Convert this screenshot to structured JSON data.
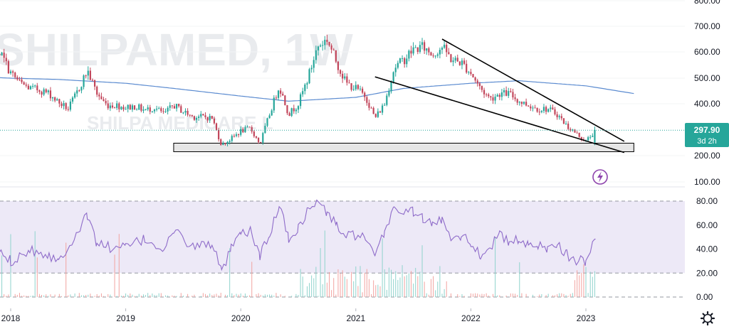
{
  "watermark": {
    "symbol": "SHILPAMED, 1W",
    "name": "SHILPA MEDICARE L"
  },
  "colors": {
    "up": "#26a69a",
    "down": "#ef5350",
    "down_body": "#c2455a",
    "ma": "#5b8bd0",
    "rsi": "#8e6bc9",
    "rsi_band": "#ede9f7",
    "price_line": "#26a69a",
    "trendline": "#000000",
    "support_fill": "#e6e6e6"
  },
  "price_label": {
    "value": "297.90",
    "countdown": "3d 2h"
  },
  "icons": {
    "alert": "lightning-icon",
    "settings": "gear-icon"
  },
  "chart_data": [
    {
      "type": "candlestick",
      "title": "",
      "y_axis": {
        "ticks": [
          "800.00",
          "700.00",
          "600.00",
          "500.00",
          "400.00",
          "200.00",
          "100.00"
        ],
        "ylim": [
          90,
          810
        ]
      },
      "x_axis": {
        "ticks": [
          "2018",
          "2019",
          "2020",
          "2021",
          "2022",
          "2023"
        ]
      },
      "last_price": 297.9,
      "support_zone": {
        "x_start": "2019-06",
        "x_end": "2023-06",
        "y_low": 215,
        "y_high": 248
      },
      "trendlines": [
        {
          "from": {
            "x": "2021-10",
            "y": 650
          },
          "to": {
            "x": "2023-05",
            "y": 255
          }
        },
        {
          "from": {
            "x": "2021-03",
            "y": 505
          },
          "to": {
            "x": "2023-05",
            "y": 212
          }
        }
      ],
      "series": [
        {
          "type": "candles",
          "close_path": [
            [
              "2017-10",
              670
            ],
            [
              "2017-11",
              645
            ],
            [
              "2017-12",
              590
            ],
            [
              "2018-01",
              520
            ],
            [
              "2018-02",
              480
            ],
            [
              "2018-03",
              460
            ],
            [
              "2018-04",
              455
            ],
            [
              "2018-05",
              440
            ],
            [
              "2018-06",
              405
            ],
            [
              "2018-07",
              380
            ],
            [
              "2018-08",
              450
            ],
            [
              "2018-09",
              530
            ],
            [
              "2018-10",
              440
            ],
            [
              "2018-11",
              395
            ],
            [
              "2018-12",
              395
            ],
            [
              "2019-01",
              385
            ],
            [
              "2019-02",
              390
            ],
            [
              "2019-03",
              375
            ],
            [
              "2019-04",
              385
            ],
            [
              "2019-05",
              360
            ],
            [
              "2019-06",
              395
            ],
            [
              "2019-07",
              370
            ],
            [
              "2019-08",
              350
            ],
            [
              "2019-09",
              350
            ],
            [
              "2019-10",
              345
            ],
            [
              "2019-11",
              240
            ],
            [
              "2019-12",
              265
            ],
            [
              "2020-01",
              295
            ],
            [
              "2020-02",
              305
            ],
            [
              "2020-03",
              245
            ],
            [
              "2020-04",
              360
            ],
            [
              "2020-05",
              470
            ],
            [
              "2020-06",
              360
            ],
            [
              "2020-07",
              400
            ],
            [
              "2020-08",
              500
            ],
            [
              "2020-09",
              620
            ],
            [
              "2020-10",
              650
            ],
            [
              "2020-11",
              560
            ],
            [
              "2020-12",
              480
            ],
            [
              "2021-01",
              460
            ],
            [
              "2021-02",
              430
            ],
            [
              "2021-03",
              345
            ],
            [
              "2021-04",
              400
            ],
            [
              "2021-05",
              540
            ],
            [
              "2021-06",
              570
            ],
            [
              "2021-07",
              610
            ],
            [
              "2021-08",
              620
            ],
            [
              "2021-09",
              590
            ],
            [
              "2021-10",
              620
            ],
            [
              "2021-11",
              570
            ],
            [
              "2021-12",
              560
            ],
            [
              "2022-01",
              520
            ],
            [
              "2022-02",
              460
            ],
            [
              "2022-03",
              420
            ],
            [
              "2022-04",
              440
            ],
            [
              "2022-05",
              440
            ],
            [
              "2022-06",
              410
            ],
            [
              "2022-07",
              395
            ],
            [
              "2022-08",
              380
            ],
            [
              "2022-09",
              380
            ],
            [
              "2022-10",
              360
            ],
            [
              "2022-11",
              315
            ],
            [
              "2022-12",
              285
            ],
            [
              "2023-01",
              255
            ],
            [
              "2023-02",
              297.9
            ]
          ]
        },
        {
          "type": "moving-average",
          "path": [
            [
              "2017-10",
              505
            ],
            [
              "2018-01",
              500
            ],
            [
              "2018-06",
              495
            ],
            [
              "2019-01",
              480
            ],
            [
              "2019-06",
              460
            ],
            [
              "2020-01",
              430
            ],
            [
              "2020-06",
              410
            ],
            [
              "2021-01",
              425
            ],
            [
              "2021-06",
              460
            ],
            [
              "2022-01",
              480
            ],
            [
              "2022-06",
              490
            ],
            [
              "2023-01",
              470
            ],
            [
              "2023-06",
              440
            ]
          ]
        }
      ]
    },
    {
      "type": "line",
      "title": "",
      "y_axis": {
        "ticks": [
          "80.00",
          "60.00",
          "40.00",
          "20.00",
          "0.00"
        ],
        "ylim": [
          -5,
          88
        ]
      },
      "band": [
        20,
        80
      ],
      "series": [
        {
          "type": "rsi",
          "path": [
            [
              "2017-10",
              52
            ],
            [
              "2017-12",
              38
            ],
            [
              "2018-01",
              30
            ],
            [
              "2018-03",
              40
            ],
            [
              "2018-05",
              35
            ],
            [
              "2018-06",
              30
            ],
            [
              "2018-08",
              55
            ],
            [
              "2018-09",
              68
            ],
            [
              "2018-10",
              45
            ],
            [
              "2018-12",
              40
            ],
            [
              "2019-01",
              42
            ],
            [
              "2019-03",
              48
            ],
            [
              "2019-05",
              40
            ],
            [
              "2019-06",
              55
            ],
            [
              "2019-08",
              42
            ],
            [
              "2019-10",
              45
            ],
            [
              "2019-11",
              20
            ],
            [
              "2019-12",
              40
            ],
            [
              "2020-01",
              52
            ],
            [
              "2020-02",
              55
            ],
            [
              "2020-03",
              35
            ],
            [
              "2020-04",
              50
            ],
            [
              "2020-05",
              78
            ],
            [
              "2020-06",
              48
            ],
            [
              "2020-07",
              58
            ],
            [
              "2020-08",
              72
            ],
            [
              "2020-09",
              80
            ],
            [
              "2020-10",
              70
            ],
            [
              "2020-11",
              60
            ],
            [
              "2020-12",
              50
            ],
            [
              "2021-01",
              52
            ],
            [
              "2021-02",
              48
            ],
            [
              "2021-03",
              32
            ],
            [
              "2021-04",
              55
            ],
            [
              "2021-05",
              75
            ],
            [
              "2021-06",
              70
            ],
            [
              "2021-07",
              72
            ],
            [
              "2021-08",
              65
            ],
            [
              "2021-09",
              60
            ],
            [
              "2021-10",
              65
            ],
            [
              "2021-11",
              50
            ],
            [
              "2021-12",
              52
            ],
            [
              "2022-01",
              45
            ],
            [
              "2022-02",
              35
            ],
            [
              "2022-03",
              42
            ],
            [
              "2022-04",
              52
            ],
            [
              "2022-05",
              45
            ],
            [
              "2022-06",
              48
            ],
            [
              "2022-07",
              42
            ],
            [
              "2022-08",
              44
            ],
            [
              "2022-09",
              40
            ],
            [
              "2022-10",
              46
            ],
            [
              "2022-11",
              35
            ],
            [
              "2022-12",
              30
            ],
            [
              "2023-01",
              30
            ],
            [
              "2023-02",
              50
            ]
          ]
        }
      ]
    }
  ]
}
